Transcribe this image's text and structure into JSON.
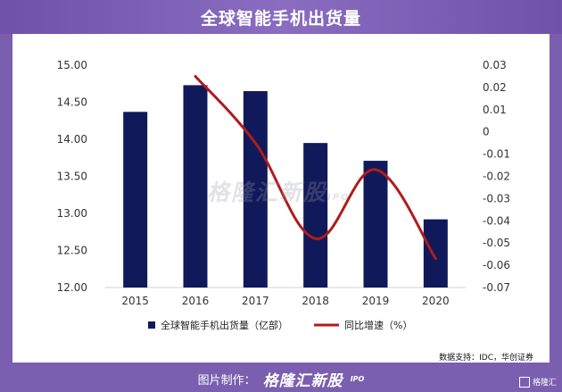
{
  "header": {
    "title": "全球智能手机出货量"
  },
  "chart_data": {
    "type": "bar",
    "categories": [
      "2015",
      "2016",
      "2017",
      "2018",
      "2019",
      "2020"
    ],
    "series": [
      {
        "name": "全球智能手机出货量（亿部）",
        "type": "bar",
        "axis": "left",
        "values": [
          14.37,
          14.73,
          14.65,
          13.95,
          13.71,
          12.92
        ]
      },
      {
        "name": "同比增速（%）",
        "type": "line",
        "axis": "right",
        "values": [
          null,
          0.025,
          -0.005,
          -0.048,
          -0.017,
          -0.057
        ]
      }
    ],
    "y_left": {
      "min": 12.0,
      "max": 15.0,
      "ticks": [
        "12.00",
        "12.50",
        "13.00",
        "13.50",
        "14.00",
        "14.50",
        "15.00"
      ]
    },
    "y_right": {
      "min": -0.07,
      "max": 0.03,
      "ticks": [
        "-0.07",
        "-0.06",
        "-0.05",
        "-0.04",
        "-0.03",
        "-0.02",
        "-0.01",
        "0",
        "0.01",
        "0.02",
        "0.03"
      ]
    },
    "colors": {
      "bar": "#10195a",
      "line": "#b01c1c"
    },
    "legend_position": "bottom",
    "grid": false
  },
  "source": "数据支持：IDC，华创证券",
  "footer": {
    "label": "图片制作：",
    "brand": "格隆汇新股",
    "ipo": "IPO"
  },
  "watermark": {
    "text": "格隆汇新股",
    "ipo": "IPO"
  },
  "corner": {
    "text": "格隆汇"
  }
}
